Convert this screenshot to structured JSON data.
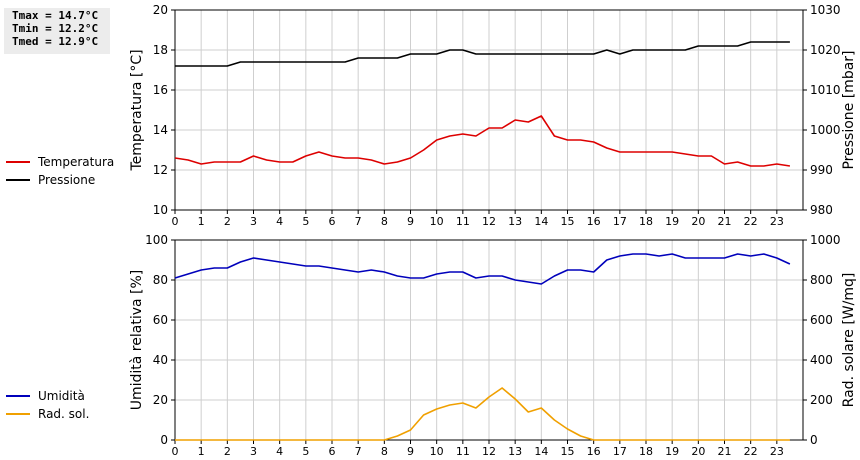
{
  "stats": [
    "Tmax = 14.7°C",
    "Tmin = 12.2°C",
    "Tmed = 12.9°C"
  ],
  "chart_data": [
    {
      "type": "line",
      "ylabel": "Temperatura [°C]",
      "y2label": "Pressione [mbar]",
      "xlim": [
        0,
        24
      ],
      "ylim": [
        10,
        20
      ],
      "y2lim": [
        980,
        1030
      ],
      "xticks": [
        "0",
        "1",
        "2",
        "3",
        "4",
        "5",
        "6",
        "7",
        "8",
        "9",
        "10",
        "11",
        "12",
        "13",
        "14",
        "15",
        "16",
        "17",
        "18",
        "19",
        "20",
        "21",
        "22",
        "23"
      ],
      "yticks": [
        "10",
        "12",
        "14",
        "16",
        "18",
        "20"
      ],
      "y2ticks": [
        "980",
        "990",
        "1000",
        "1010",
        "1020",
        "1030"
      ],
      "grid": true,
      "legend_position": "left",
      "series": [
        {
          "name": "Temperatura",
          "color": "#dd0000",
          "axis": "left",
          "x": [
            0,
            0.5,
            1,
            1.5,
            2,
            2.5,
            3,
            3.5,
            4,
            4.5,
            5,
            5.5,
            6,
            6.5,
            7,
            7.5,
            8,
            8.5,
            9,
            9.5,
            10,
            10.5,
            11,
            11.5,
            12,
            12.5,
            13,
            13.5,
            14,
            14.5,
            15,
            15.5,
            16,
            16.5,
            17,
            17.5,
            18,
            18.5,
            19,
            19.5,
            20,
            20.5,
            21,
            21.5,
            22,
            22.5,
            23,
            23.5
          ],
          "values": [
            12.6,
            12.5,
            12.3,
            12.4,
            12.4,
            12.4,
            12.7,
            12.5,
            12.4,
            12.4,
            12.7,
            12.9,
            12.7,
            12.6,
            12.6,
            12.5,
            12.3,
            12.4,
            12.6,
            13.0,
            13.5,
            13.7,
            13.8,
            13.7,
            14.1,
            14.1,
            14.5,
            14.4,
            14.7,
            13.7,
            13.5,
            13.5,
            13.4,
            13.1,
            12.9,
            12.9,
            12.9,
            12.9,
            12.9,
            12.8,
            12.7,
            12.7,
            12.3,
            12.4,
            12.2,
            12.2,
            12.3,
            12.2
          ]
        },
        {
          "name": "Pressione",
          "color": "#000000",
          "axis": "right",
          "x": [
            0,
            0.5,
            1,
            1.5,
            2,
            2.5,
            3,
            3.5,
            4,
            4.5,
            5,
            5.5,
            6,
            6.5,
            7,
            7.5,
            8,
            8.5,
            9,
            9.5,
            10,
            10.5,
            11,
            11.5,
            12,
            12.5,
            13,
            13.5,
            14,
            14.5,
            15,
            15.5,
            16,
            16.5,
            17,
            17.5,
            18,
            18.5,
            19,
            19.5,
            20,
            20.5,
            21,
            21.5,
            22,
            22.5,
            23,
            23.5
          ],
          "values": [
            1016,
            1016,
            1016,
            1016,
            1016,
            1017,
            1017,
            1017,
            1017,
            1017,
            1017,
            1017,
            1017,
            1017,
            1018,
            1018,
            1018,
            1018,
            1019,
            1019,
            1019,
            1020,
            1020,
            1019,
            1019,
            1019,
            1019,
            1019,
            1019,
            1019,
            1019,
            1019,
            1019,
            1020,
            1019,
            1020,
            1020,
            1020,
            1020,
            1020,
            1021,
            1021,
            1021,
            1021,
            1022,
            1022,
            1022,
            1022
          ]
        }
      ]
    },
    {
      "type": "line",
      "ylabel": "Umidità relativa [%]",
      "y2label": "Rad. solare [W/mq]",
      "xlim": [
        0,
        24
      ],
      "ylim": [
        0,
        100
      ],
      "y2lim": [
        0,
        1000
      ],
      "xticks": [
        "0",
        "1",
        "2",
        "3",
        "4",
        "5",
        "6",
        "7",
        "8",
        "9",
        "10",
        "11",
        "12",
        "13",
        "14",
        "15",
        "16",
        "17",
        "18",
        "19",
        "20",
        "21",
        "22",
        "23"
      ],
      "yticks": [
        "0",
        "20",
        "40",
        "60",
        "80",
        "100"
      ],
      "y2ticks": [
        "0",
        "200",
        "400",
        "600",
        "800",
        "1000"
      ],
      "grid": true,
      "legend_position": "left",
      "series": [
        {
          "name": "Umidità",
          "color": "#0000bb",
          "axis": "left",
          "x": [
            0,
            0.5,
            1,
            1.5,
            2,
            2.5,
            3,
            3.5,
            4,
            4.5,
            5,
            5.5,
            6,
            6.5,
            7,
            7.5,
            8,
            8.5,
            9,
            9.5,
            10,
            10.5,
            11,
            11.5,
            12,
            12.5,
            13,
            13.5,
            14,
            14.5,
            15,
            15.5,
            16,
            16.5,
            17,
            17.5,
            18,
            18.5,
            19,
            19.5,
            20,
            20.5,
            21,
            21.5,
            22,
            22.5,
            23,
            23.5
          ],
          "values": [
            81,
            83,
            85,
            86,
            86,
            89,
            91,
            90,
            89,
            88,
            87,
            87,
            86,
            85,
            84,
            85,
            84,
            82,
            81,
            81,
            83,
            84,
            84,
            81,
            82,
            82,
            80,
            79,
            78,
            82,
            85,
            85,
            84,
            90,
            92,
            93,
            93,
            92,
            93,
            91,
            91,
            91,
            91,
            93,
            92,
            93,
            91,
            88
          ]
        },
        {
          "name": "Rad. sol.",
          "color": "#f0a000",
          "axis": "right",
          "x": [
            0,
            1,
            2,
            3,
            4,
            5,
            6,
            7,
            7.5,
            8,
            8.5,
            9,
            9.5,
            10,
            10.5,
            11,
            11.5,
            12,
            12.5,
            13,
            13.5,
            14,
            14.5,
            15,
            15.5,
            16,
            17,
            18,
            19,
            20,
            21,
            22,
            23,
            23.5
          ],
          "values": [
            0,
            0,
            0,
            0,
            0,
            0,
            0,
            0,
            0,
            0,
            20,
            50,
            125,
            155,
            175,
            185,
            160,
            215,
            260,
            205,
            140,
            160,
            100,
            55,
            20,
            0,
            0,
            0,
            0,
            0,
            0,
            0,
            0,
            0
          ]
        }
      ]
    }
  ]
}
